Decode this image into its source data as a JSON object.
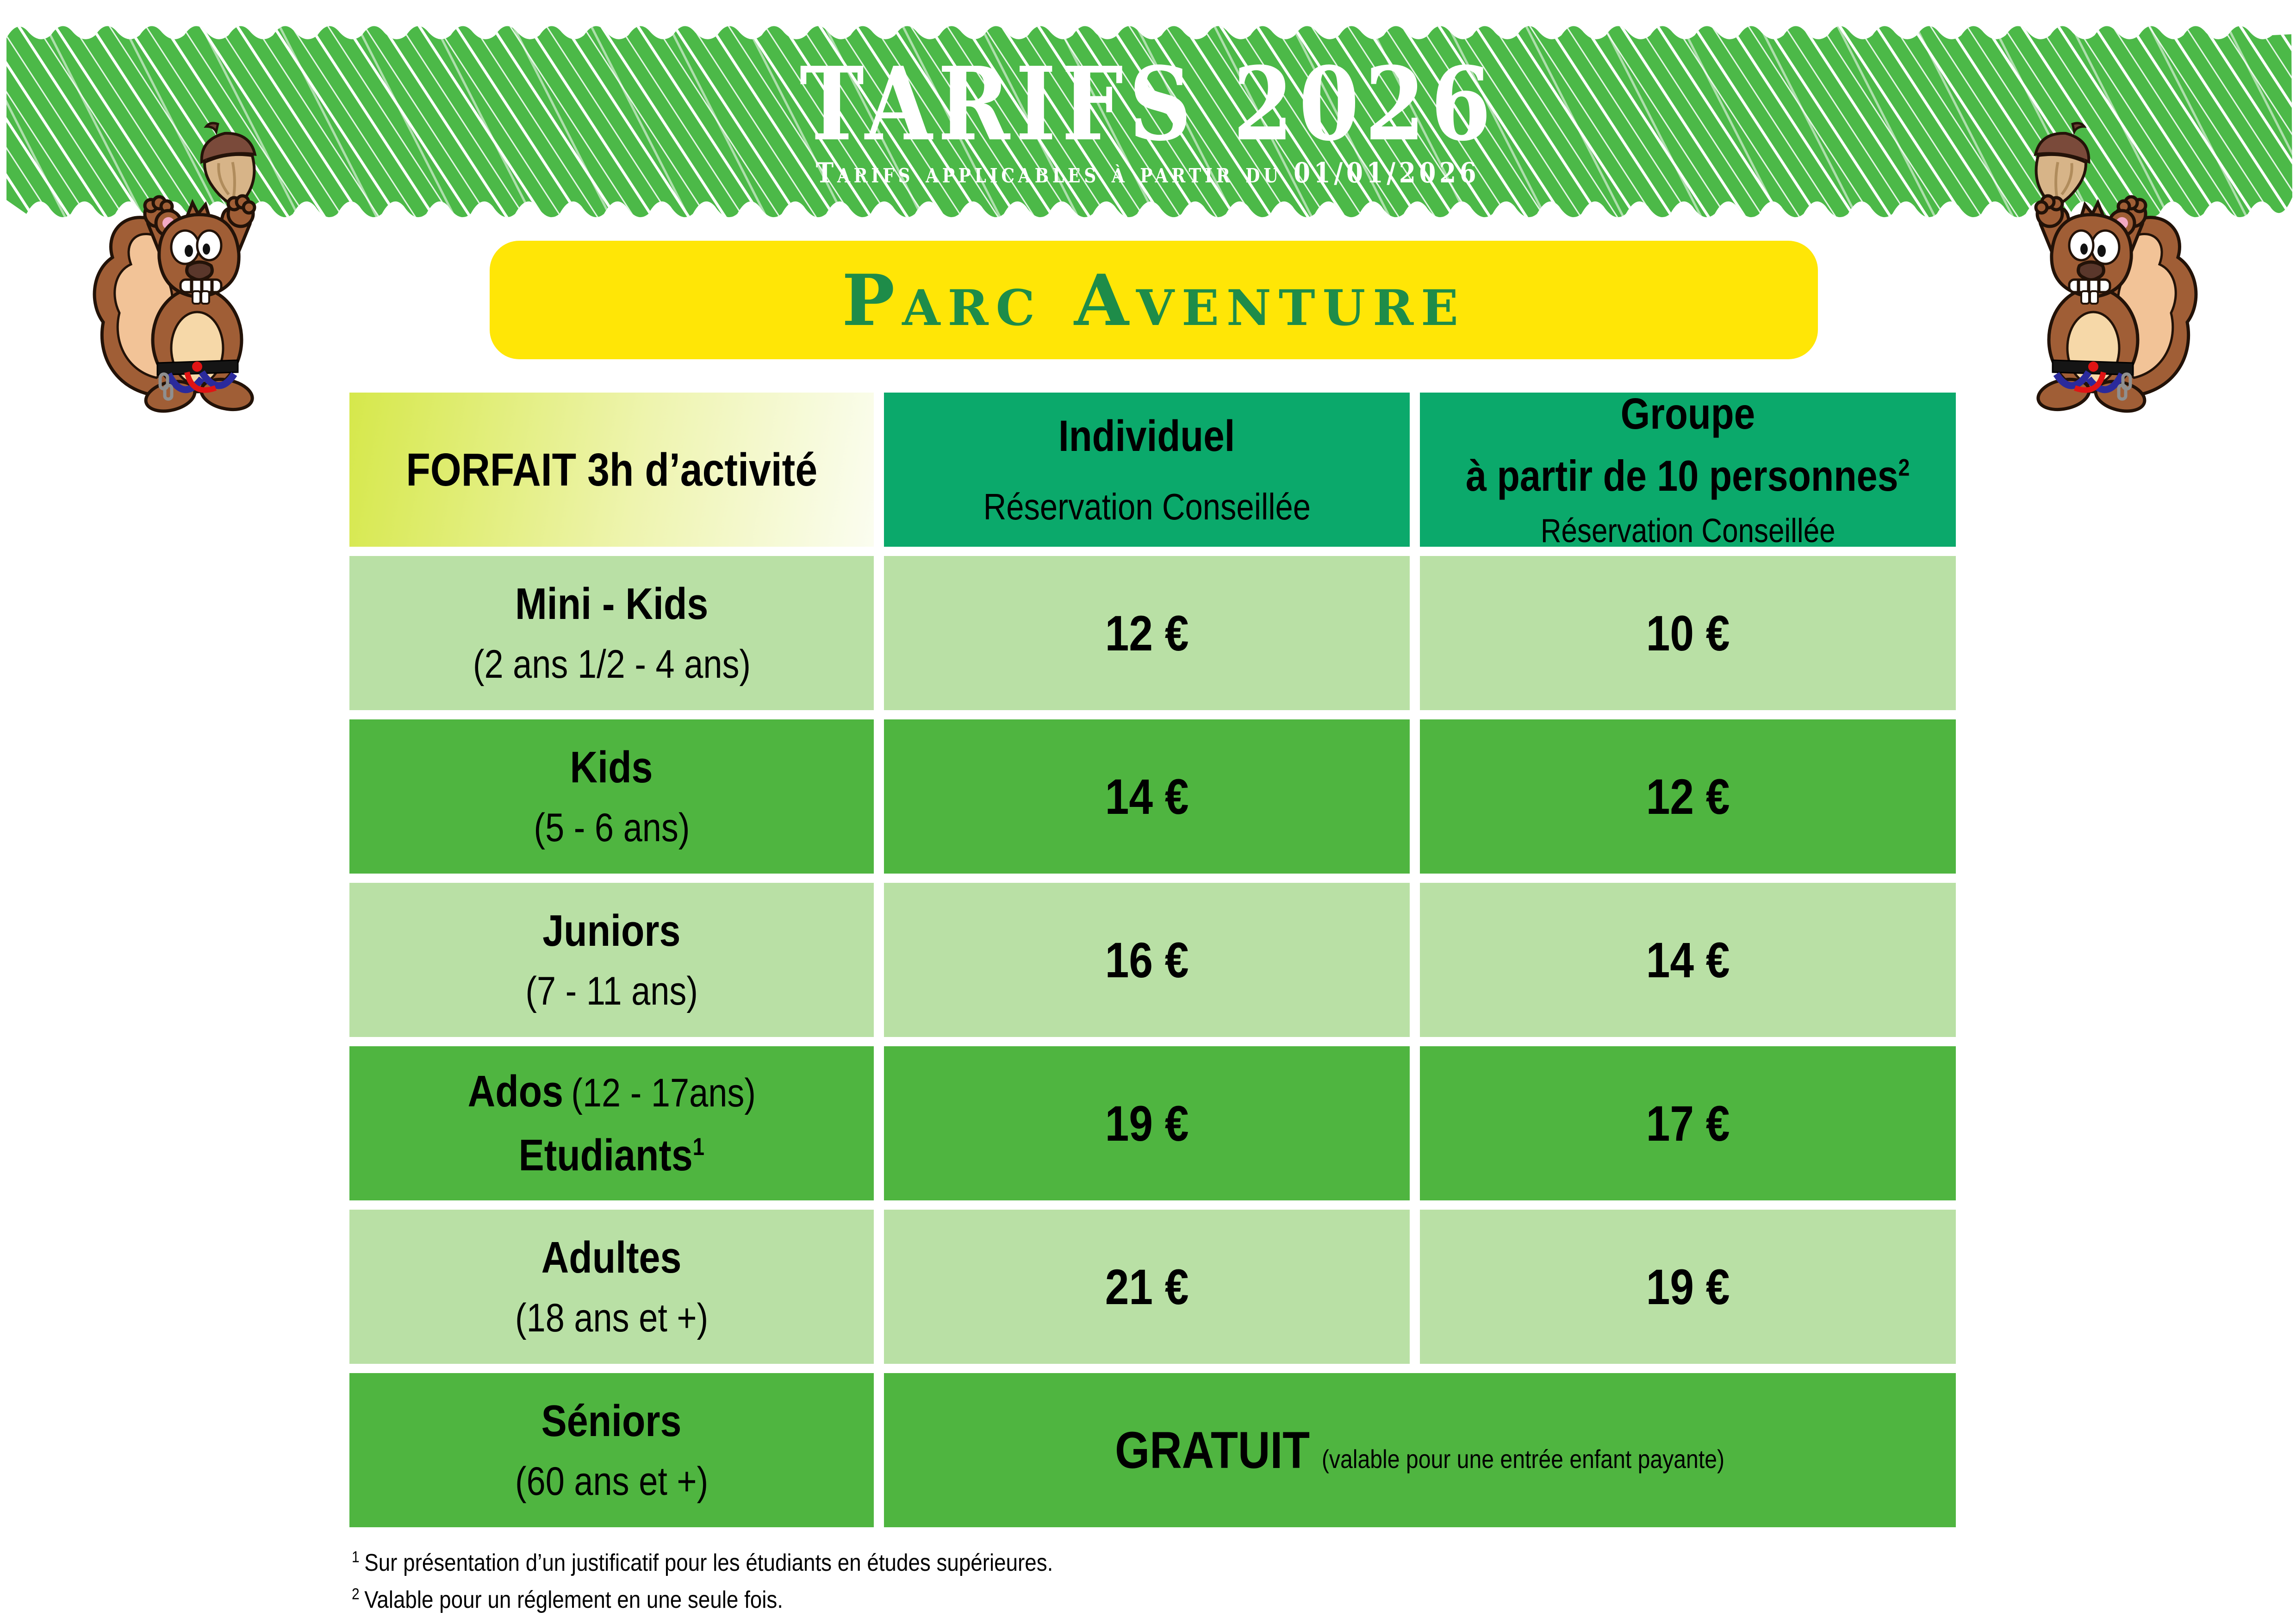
{
  "banner": {
    "title": "TARIFS 2026",
    "subtitle": "Tarifs applicables à partir du 01/01/2026"
  },
  "park_banner": {
    "label": "Parc Aventure"
  },
  "table": {
    "header": {
      "col1": "FORFAIT 3h d’activité",
      "col2_title": "Individuel",
      "col2_sub": "Réservation Conseillée",
      "col3_title": "Groupe",
      "col3_sub1": "à partir de 10 personnes",
      "col3_sup": "2",
      "col3_sub2": "Réservation Conseillée"
    },
    "rows": [
      {
        "name": "Mini - Kids",
        "detail": "(2 ans 1/2 - 4 ans)",
        "individual": "12 €",
        "group": "10 €"
      },
      {
        "name": "Kids",
        "detail": "(5 - 6 ans)",
        "individual": "14 €",
        "group": "12 €"
      },
      {
        "name": "Juniors",
        "detail": "(7 - 11 ans)",
        "individual": "16 €",
        "group": "14 €"
      },
      {
        "name": "Ados",
        "name_detail": "(12 - 17ans)",
        "name2": "Etudiants",
        "name2_sup": "1",
        "individual": "19 €",
        "group": "17 €"
      },
      {
        "name": "Adultes",
        "detail": "(18 ans et +)",
        "individual": "21 €",
        "group": "19 €"
      },
      {
        "name": "Séniors",
        "detail": "(60 ans et +)",
        "merged": "GRATUIT",
        "merged_detail": "(valable pour une entrée enfant payante)"
      }
    ]
  },
  "footnotes": [
    {
      "sup": "1",
      "text": "Sur présentation d’un justificatif pour les étudiants en études supérieures."
    },
    {
      "sup": "2",
      "text": "Valable pour un réglement en une seule fois."
    }
  ],
  "colors": {
    "band_green": "#4cb948",
    "teal": "#0ba96b",
    "row_light": "#b9e0a5",
    "row_dark": "#4fb540",
    "yellow": "#ffe606",
    "park_text": "#1e8c49",
    "col1_from": "#d6e84b",
    "col1_to": "#fbfdf0"
  }
}
